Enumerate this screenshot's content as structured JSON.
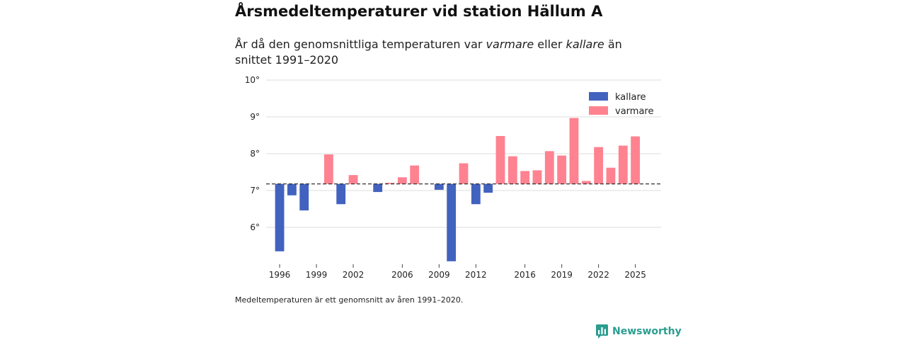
{
  "header": {
    "title": "Årsmedeltemperaturer vid station Hällum A",
    "subtitle_pre": "År då den genomsnittliga temperaturen var ",
    "subtitle_warm": "varmare",
    "subtitle_mid": " eller ",
    "subtitle_cold": "kallare",
    "subtitle_post": " än snittet 1991–2020"
  },
  "footnote": "Medeltemperaturen är ett genomsnitt av åren 1991–2020.",
  "brand": {
    "name": "Newsworthy",
    "color": "#2a9d8f"
  },
  "colors": {
    "colder": "#4262bf",
    "warmer": "#ff8290",
    "grid": "#dddddd",
    "baseline": "#333333"
  },
  "chart_data": {
    "type": "bar",
    "title": "Årsmedeltemperaturer vid station Hällum A",
    "baseline": 7.18,
    "baseline_label": "snittet 1991–2020",
    "ylim": [
      5.0,
      10.0
    ],
    "yticks": [
      6,
      7,
      8,
      9,
      10
    ],
    "ytick_labels": [
      "6°",
      "7°",
      "8°",
      "9°",
      "10°"
    ],
    "xlim": [
      1994.9,
      2027.1
    ],
    "xticks": [
      1996,
      1999,
      2002,
      2006,
      2009,
      2012,
      2016,
      2019,
      2022,
      2025
    ],
    "xtick_labels": [
      "1996",
      "1999",
      "2002",
      "2006",
      "2009",
      "2012",
      "2016",
      "2019",
      "2022",
      "2025"
    ],
    "legend": [
      {
        "key": "colder",
        "label": "kallare"
      },
      {
        "key": "warmer",
        "label": "varmare"
      }
    ],
    "legend_position": "top-right",
    "years": [
      1996,
      1997,
      1998,
      1999,
      2000,
      2001,
      2002,
      2003,
      2004,
      2005,
      2006,
      2007,
      2008,
      2009,
      2010,
      2011,
      2012,
      2013,
      2014,
      2015,
      2016,
      2017,
      2018,
      2019,
      2020,
      2021,
      2022,
      2023,
      2024,
      2025
    ],
    "values": [
      5.35,
      6.87,
      6.46,
      null,
      7.98,
      6.63,
      7.42,
      null,
      6.96,
      7.21,
      7.36,
      7.68,
      null,
      7.02,
      5.08,
      7.74,
      6.63,
      6.94,
      8.48,
      7.93,
      7.53,
      7.55,
      8.07,
      7.95,
      8.97,
      7.26,
      8.18,
      7.62,
      8.22,
      8.47
    ]
  }
}
